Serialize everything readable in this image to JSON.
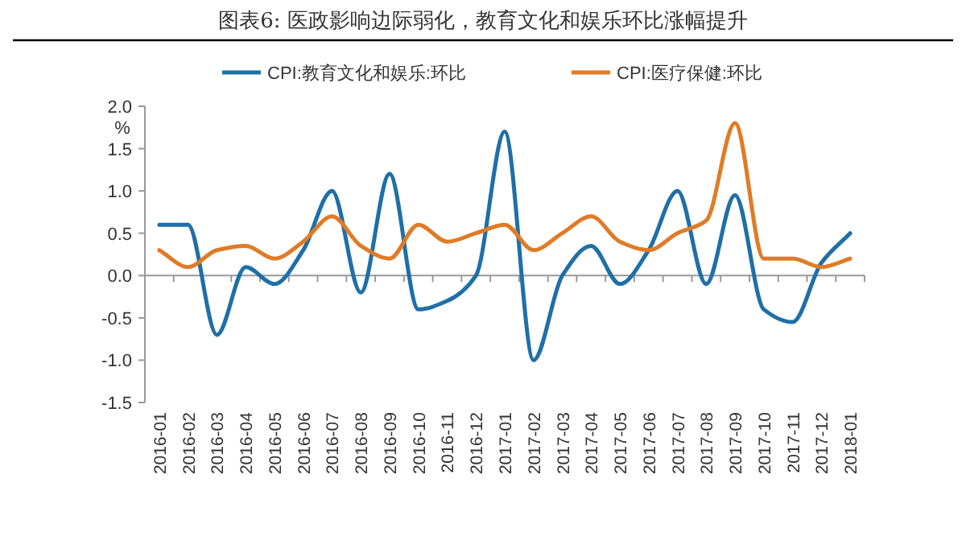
{
  "chart_data": {
    "type": "line",
    "title": "图表6:   医政影响边际弱化，教育文化和娱乐环比涨幅提升",
    "ylabel": "%",
    "categories": [
      "2016-01",
      "2016-02",
      "2016-03",
      "2016-04",
      "2016-05",
      "2016-06",
      "2016-07",
      "2016-08",
      "2016-09",
      "2016-10",
      "2016-11",
      "2016-12",
      "2017-01",
      "2017-02",
      "2017-03",
      "2017-04",
      "2017-05",
      "2017-06",
      "2017-07",
      "2017-08",
      "2017-09",
      "2017-10",
      "2017-11",
      "2017-12",
      "2018-01"
    ],
    "series": [
      {
        "name": "CPI:教育文化和娱乐:环比",
        "color": "#1f6fa8",
        "values": [
          0.6,
          0.6,
          -0.7,
          0.1,
          -0.1,
          0.3,
          1.0,
          -0.2,
          1.2,
          -0.4,
          -0.3,
          0.0,
          1.7,
          -1.0,
          0.0,
          0.35,
          -0.1,
          0.3,
          1.0,
          -0.1,
          0.95,
          -0.4,
          -0.55,
          0.15,
          0.5
        ]
      },
      {
        "name": "CPI:医疗保健:环比",
        "color": "#e07b26",
        "values": [
          0.3,
          0.1,
          0.3,
          0.35,
          0.2,
          0.4,
          0.7,
          0.35,
          0.2,
          0.6,
          0.4,
          0.5,
          0.6,
          0.3,
          0.5,
          0.7,
          0.4,
          0.3,
          0.5,
          0.65,
          1.8,
          0.2,
          0.2,
          0.1,
          0.2
        ]
      }
    ],
    "ylim": [
      -1.5,
      2.0
    ],
    "yticks": [
      {
        "value": -1.5,
        "label": "-1.5"
      },
      {
        "value": -1.0,
        "label": "-1.0"
      },
      {
        "value": -0.5,
        "label": "-0.5"
      },
      {
        "value": 0,
        "label": "0.0"
      },
      {
        "value": 0.5,
        "label": "0.5"
      },
      {
        "value": 1.0,
        "label": "1.0"
      },
      {
        "value": 1.5,
        "label": "1.5"
      },
      {
        "value": 2.0,
        "label": "2.0"
      }
    ],
    "legend": "top"
  }
}
